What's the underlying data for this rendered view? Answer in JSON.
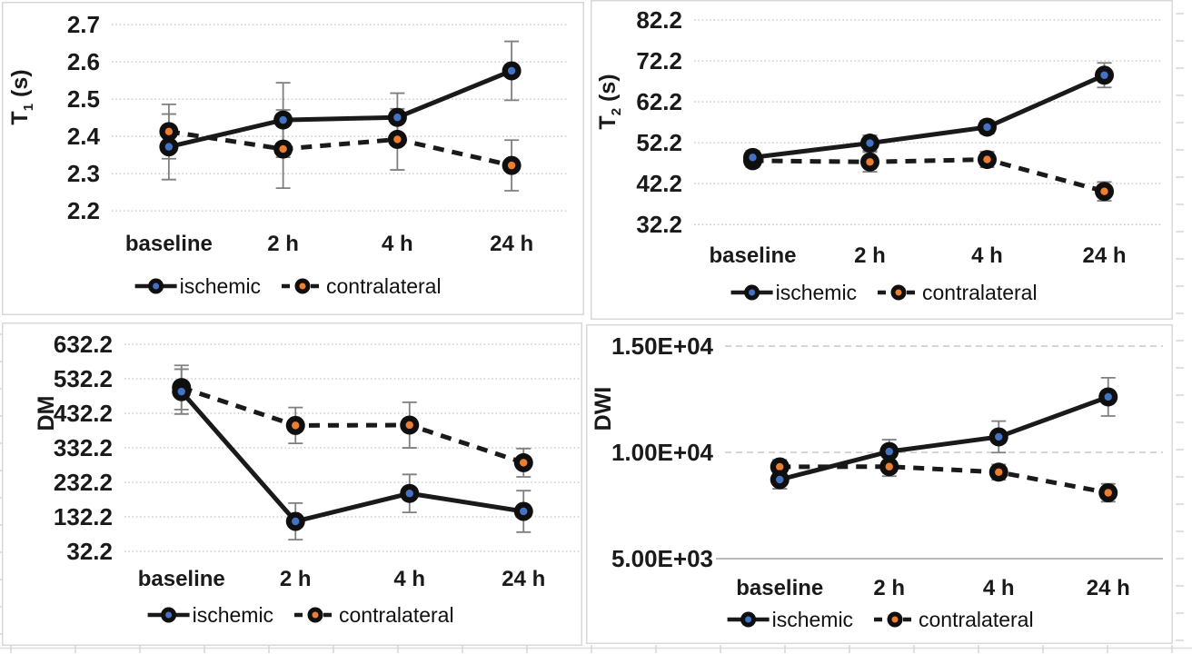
{
  "page": {
    "background": "#ffffff"
  },
  "colors": {
    "series_line": "#1a1a1a",
    "marker_fill": "#0f0f0f",
    "ischemic_dot": "#4472c4",
    "contralateral_dot": "#ed7d31",
    "error_bar": "#7f7f7f",
    "gridline": "#c4c4c4",
    "axis_line": "#a9a9a9",
    "panel_border": "#d8d8d8",
    "sheet_line": "#cfcfcf"
  },
  "chart_data": [
    {
      "id": "t1",
      "type": "line",
      "title": "",
      "ylabel": "T1 (s)",
      "ylabel_parts": [
        {
          "text": "T"
        },
        {
          "text": "1",
          "sub": true
        },
        {
          "text": " (s)"
        }
      ],
      "categories": [
        "baseline",
        "2 h",
        "4 h",
        "24 h"
      ],
      "yticks": {
        "labels": [
          "2.7",
          "2.6",
          "2.5",
          "2.4",
          "2.3",
          "2.2"
        ],
        "values": [
          2.7,
          2.6,
          2.5,
          2.4,
          2.3,
          2.2
        ]
      },
      "ylim": [
        2.176,
        2.732
      ],
      "grid_style": "dotted",
      "axis_line_bottom": false,
      "legend_position": "bottom",
      "series": [
        {
          "name": "ischemic",
          "line": "solid",
          "dot_color": "#4472c4",
          "values": [
            2.372,
            2.444,
            2.451,
            2.576
          ],
          "errors": [
            0.088,
            0.1,
            0.065,
            0.079
          ]
        },
        {
          "name": "contralateral",
          "line": "dashed",
          "dot_color": "#ed7d31",
          "values": [
            2.413,
            2.366,
            2.392,
            2.322
          ],
          "errors": [
            0.073,
            0.105,
            0.082,
            0.068
          ]
        }
      ]
    },
    {
      "id": "t2",
      "type": "line",
      "title": "",
      "ylabel": "T2 (s)",
      "ylabel_parts": [
        {
          "text": "T"
        },
        {
          "text": "2",
          "sub": true
        },
        {
          "text": " (s)"
        }
      ],
      "categories": [
        "baseline",
        "2 h",
        "4 h",
        "24 h"
      ],
      "yticks": {
        "labels": [
          "82.2",
          "72.2",
          "62.2",
          "52.2",
          "42.2",
          "32.2"
        ],
        "values": [
          82.2,
          72.2,
          62.2,
          52.2,
          42.2,
          32.2
        ]
      },
      "ylim": [
        29.8,
        85.3
      ],
      "grid_style": "dotted",
      "axis_line_bottom": false,
      "legend_position": "bottom",
      "series": [
        {
          "name": "ischemic",
          "line": "solid",
          "dot_color": "#4472c4",
          "values": [
            48.6,
            52.1,
            56.0,
            68.7
          ],
          "errors": [
            1.6,
            1.9,
            1.6,
            3.0
          ]
        },
        {
          "name": "contralateral",
          "line": "dashed",
          "dot_color": "#ed7d31",
          "values": [
            47.8,
            47.5,
            48.1,
            40.3
          ],
          "errors": [
            1.5,
            2.4,
            1.9,
            2.3
          ]
        }
      ]
    },
    {
      "id": "dm",
      "type": "line",
      "title": "",
      "ylabel": "DM",
      "ylabel_parts": [
        {
          "text": "DM"
        }
      ],
      "categories": [
        "baseline",
        "2 h",
        "4 h",
        "24 h"
      ],
      "yticks": {
        "labels": [
          "632.2",
          "532.2",
          "432.2",
          "332.2",
          "232.2",
          "132.2",
          "32.2"
        ],
        "values": [
          632.2,
          532.2,
          432.2,
          332.2,
          232.2,
          132.2,
          32.2
        ]
      },
      "ylim": [
        16.4,
        669
      ],
      "grid_style": "dotted",
      "axis_line_bottom": false,
      "legend_position": "bottom",
      "series": [
        {
          "name": "ischemic",
          "line": "solid",
          "dot_color": "#4472c4",
          "values": [
            495,
            119,
            200,
            148
          ],
          "errors": [
            65,
            53,
            55,
            60
          ]
        },
        {
          "name": "contralateral",
          "line": "dashed",
          "dot_color": "#ed7d31",
          "values": [
            507,
            397,
            398,
            289
          ],
          "errors": [
            64,
            52,
            66,
            41
          ]
        }
      ]
    },
    {
      "id": "dwi",
      "type": "line",
      "title": "",
      "ylabel": "DWI",
      "ylabel_parts": [
        {
          "text": "DWI"
        }
      ],
      "categories": [
        "baseline",
        "2 h",
        "4 h",
        "24 h"
      ],
      "yticks": {
        "labels": [
          "1.50E+04",
          "1.00E+04",
          "5.00E+03"
        ],
        "values": [
          15000,
          10000,
          5000
        ]
      },
      "ylim": [
        4660,
        15600
      ],
      "grid_style": "dashed",
      "axis_line_bottom": true,
      "legend_position": "bottom",
      "series": [
        {
          "name": "ischemic",
          "line": "solid",
          "dot_color": "#4472c4",
          "values": [
            8720,
            10040,
            10730,
            12610
          ],
          "errors": [
            430,
            560,
            740,
            900
          ]
        },
        {
          "name": "contralateral",
          "line": "dashed",
          "dot_color": "#ed7d31",
          "values": [
            9320,
            9330,
            9070,
            8100
          ],
          "errors": [
            330,
            450,
            360,
            420
          ]
        }
      ]
    }
  ]
}
